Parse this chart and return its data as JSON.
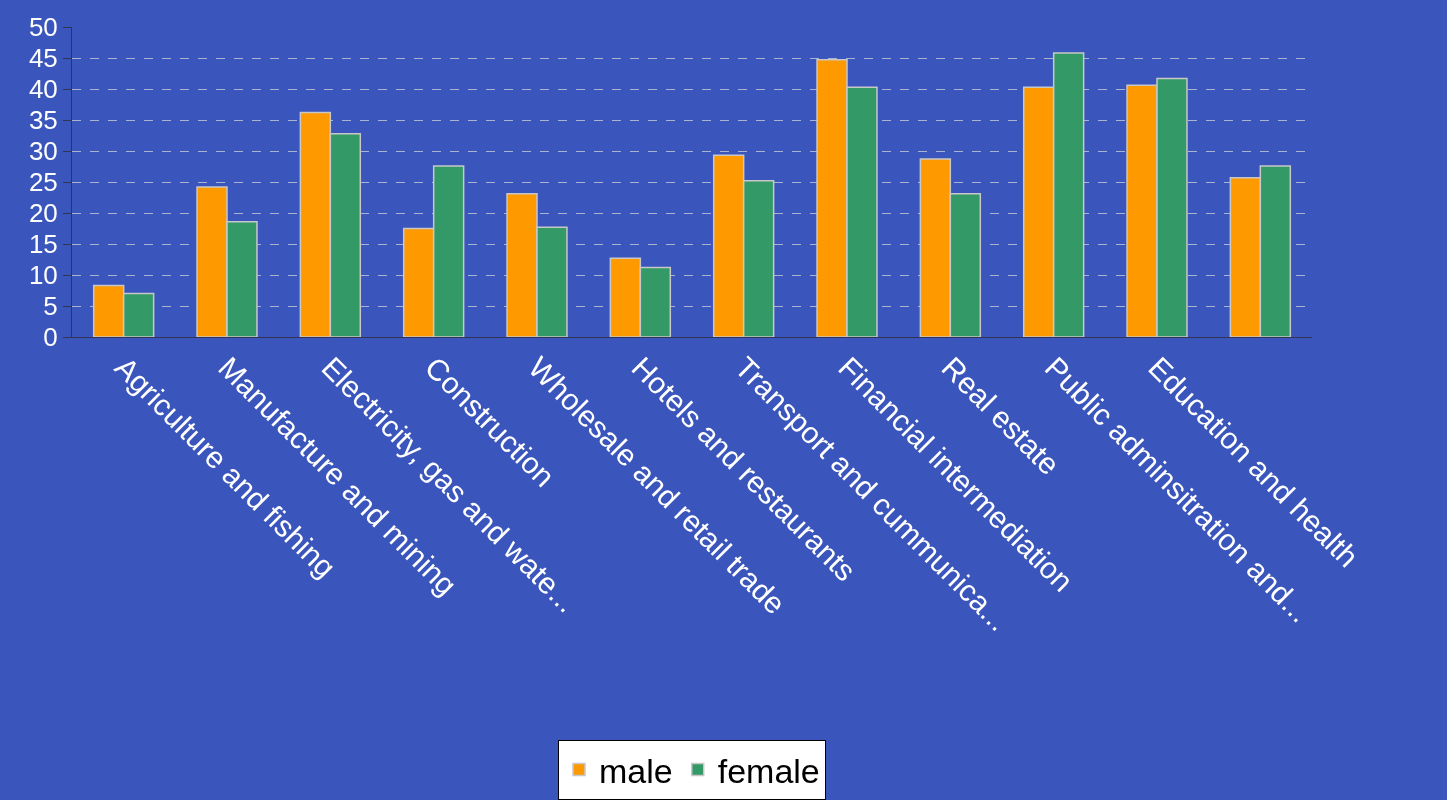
{
  "chart_data": {
    "type": "bar",
    "categories": [
      "Agriculture and fishing",
      "Manufacture and mining",
      "Electricity, gas and wate...",
      "Construction",
      "Wholesale and retail trade",
      "Hotels and restaurants",
      "Transport and cummunica...",
      "Financial intermediation",
      "Real estate",
      "Public adminsitration and...",
      "Education and health",
      null
    ],
    "series": [
      {
        "name": "male",
        "color": "#ff9900",
        "values": [
          8.3,
          24.2,
          36.2,
          17.5,
          23.1,
          12.7,
          29.3,
          44.7,
          28.7,
          40.3,
          40.6,
          25.7
        ]
      },
      {
        "name": "female",
        "color": "#339966",
        "values": [
          7.0,
          18.6,
          32.8,
          27.6,
          17.7,
          11.2,
          25.2,
          40.3,
          23.1,
          45.8,
          41.7,
          27.6
        ]
      }
    ],
    "ylim": [
      0,
      50
    ],
    "yticks": [
      0,
      5,
      10,
      15,
      20,
      25,
      30,
      35,
      40,
      45,
      50
    ],
    "grid": "y",
    "legend": "bottom"
  }
}
